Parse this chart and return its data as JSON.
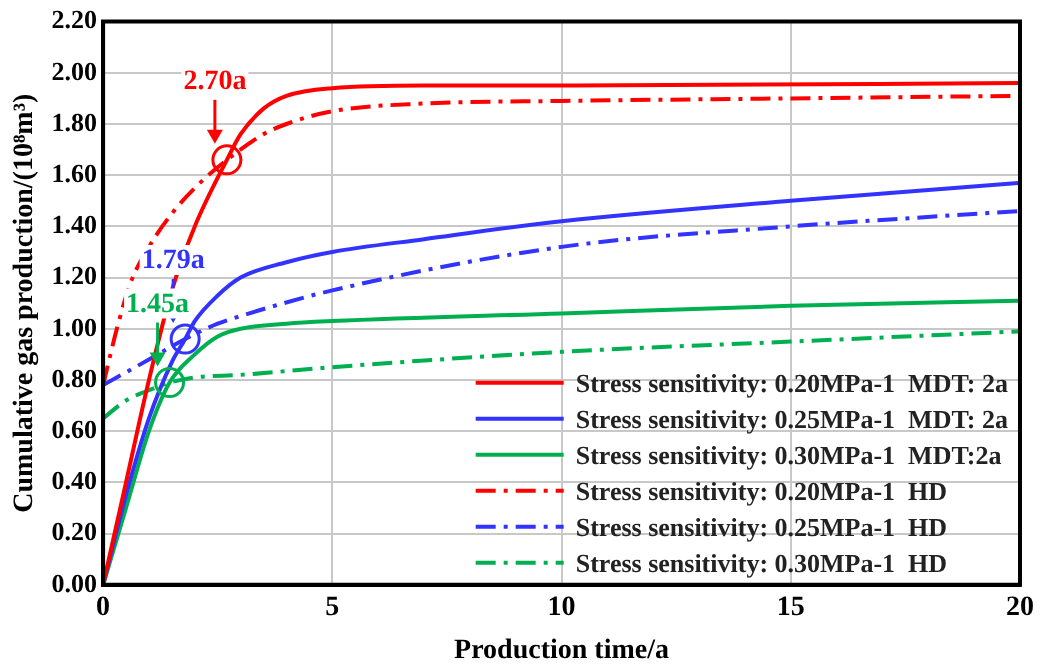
{
  "chart_data": {
    "type": "line",
    "xlabel": "Production time/a",
    "ylabel": "Cumulative gas production/(10⁸m³)",
    "xlim": [
      0,
      20
    ],
    "xticks": [
      0,
      5,
      10,
      15,
      20
    ],
    "ylim": [
      0,
      2.2
    ],
    "yticks": [
      {
        "value": 0,
        "label": "0.00"
      },
      {
        "value": 0.2,
        "label": "0.20"
      },
      {
        "value": 0.4,
        "label": "0.40"
      },
      {
        "value": 0.6,
        "label": "0.60"
      },
      {
        "value": 0.8,
        "label": "0.80"
      },
      {
        "value": 1.0,
        "label": "1.00"
      },
      {
        "value": 1.2,
        "label": "1.20"
      },
      {
        "value": 1.4,
        "label": "1.40"
      },
      {
        "value": 1.6,
        "label": "1.60"
      },
      {
        "value": 1.8,
        "label": "1.80"
      },
      {
        "value": 2.0,
        "label": "2.00"
      },
      {
        "value": 2.2,
        "label": "2.20"
      }
    ],
    "grid": true,
    "legend": "bottom right",
    "marker": "none",
    "series": [
      {
        "name": "Stress sensitivity: 0.20MPa-1  MDT: 2a",
        "color": "#ff0000",
        "line_style": "solid",
        "x": [
          0,
          0.5,
          1,
          1.5,
          2,
          2.7,
          3,
          3.5,
          4,
          5,
          7,
          10,
          20
        ],
        "values": [
          0,
          0.4,
          0.8,
          1.15,
          1.4,
          1.66,
          1.76,
          1.86,
          1.91,
          1.94,
          1.95,
          1.95,
          1.96
        ]
      },
      {
        "name": "Stress sensitivity: 0.25MPa-1  MDT: 2a",
        "color": "#3333ff",
        "line_style": "solid",
        "x": [
          0,
          0.5,
          1,
          1.5,
          1.79,
          2,
          2.5,
          3,
          4,
          5,
          7,
          10,
          15,
          20
        ],
        "values": [
          0,
          0.35,
          0.65,
          0.87,
          0.96,
          1.03,
          1.13,
          1.2,
          1.26,
          1.3,
          1.35,
          1.42,
          1.5,
          1.57
        ]
      },
      {
        "name": "Stress sensitivity: 0.30MPa-1  MDT:2a",
        "color": "#00b050",
        "line_style": "solid",
        "x": [
          0,
          0.5,
          1,
          1.45,
          2,
          2.5,
          3,
          4,
          5,
          10,
          15,
          20
        ],
        "values": [
          0,
          0.3,
          0.6,
          0.79,
          0.9,
          0.97,
          1.0,
          1.02,
          1.03,
          1.06,
          1.09,
          1.11
        ]
      },
      {
        "name": "Stress sensitivity: 0.20MPa-1  HD",
        "color": "#ff0000",
        "line_style": "dashed",
        "x": [
          0,
          0.3,
          0.6,
          1,
          1.5,
          2,
          2.7,
          3.5,
          4,
          5,
          7,
          10,
          15,
          20
        ],
        "values": [
          0.78,
          1.0,
          1.18,
          1.32,
          1.45,
          1.55,
          1.66,
          1.76,
          1.8,
          1.85,
          1.88,
          1.89,
          1.9,
          1.91
        ]
      },
      {
        "name": "Stress sensitivity: 0.25MPa-1  HD",
        "color": "#3333ff",
        "line_style": "dashed",
        "x": [
          0,
          0.5,
          1,
          1.79,
          2.5,
          3,
          5,
          10,
          15,
          20
        ],
        "values": [
          0.78,
          0.83,
          0.88,
          0.96,
          1.02,
          1.05,
          1.15,
          1.32,
          1.4,
          1.46
        ]
      },
      {
        "name": "Stress sensitivity: 0.30MPa-1  HD",
        "color": "#00b050",
        "line_style": "dashed",
        "x": [
          0,
          0.5,
          1,
          1.45,
          2,
          3,
          5,
          10,
          15,
          20
        ],
        "values": [
          0.65,
          0.72,
          0.76,
          0.79,
          0.81,
          0.82,
          0.85,
          0.91,
          0.95,
          0.99
        ]
      }
    ],
    "annotations": [
      {
        "text": "2.70a",
        "x": 2.7,
        "y": 1.66
      },
      {
        "text": "1.79a",
        "x": 1.79,
        "y": 0.96
      },
      {
        "text": "1.45a",
        "x": 1.45,
        "y": 0.79
      }
    ]
  }
}
